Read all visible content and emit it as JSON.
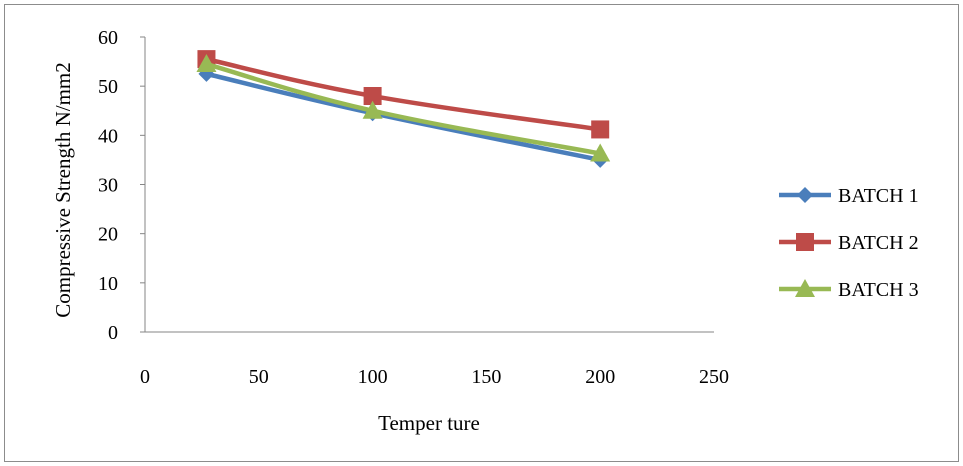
{
  "chart_data": {
    "type": "line",
    "title": "",
    "xlabel": "Temper ture",
    "ylabel": "Compressive Strength N/mm2",
    "xlim": [
      0,
      250
    ],
    "ylim": [
      0,
      60
    ],
    "x_ticks": [
      "0",
      "50",
      "100",
      "150",
      "200",
      "250"
    ],
    "y_ticks": [
      "0",
      "10",
      "20",
      "30",
      "40",
      "50",
      "60"
    ],
    "grid": false,
    "legend_position": "right",
    "x": [
      27,
      100,
      200
    ],
    "series": [
      {
        "name": "BATCH 1",
        "values": [
          52.5,
          44.5,
          35.0
        ],
        "color": "#4a7ebb",
        "marker": "diamond"
      },
      {
        "name": "BATCH 2",
        "values": [
          55.5,
          48.0,
          41.2
        ],
        "color": "#be4b48",
        "marker": "square"
      },
      {
        "name": "BATCH 3",
        "values": [
          54.5,
          45.0,
          36.3
        ],
        "color": "#98b954",
        "marker": "triangle"
      }
    ]
  }
}
